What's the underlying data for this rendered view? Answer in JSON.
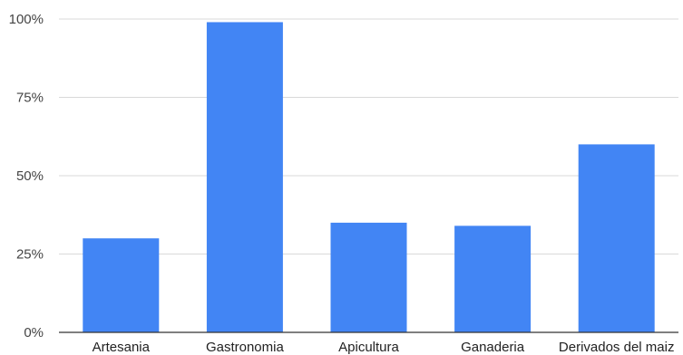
{
  "chart_data": {
    "type": "bar",
    "title": "",
    "xlabel": "",
    "ylabel": "",
    "categories": [
      "Artesania",
      "Gastronomia",
      "Apicultura",
      "Ganaderia",
      "Derivados del maiz"
    ],
    "values": [
      30,
      99,
      35,
      34,
      60
    ],
    "ylim": [
      0,
      100
    ],
    "y_ticks": [
      0,
      25,
      50,
      75,
      100
    ],
    "y_tick_labels": [
      "0%",
      "25%",
      "50%",
      "75%",
      "100%"
    ],
    "grid": true,
    "legend": "none",
    "colors": {
      "bar": "#4285F4",
      "grid": "#d9d9d9",
      "axis": "#333333",
      "background": "#ffffff"
    }
  }
}
